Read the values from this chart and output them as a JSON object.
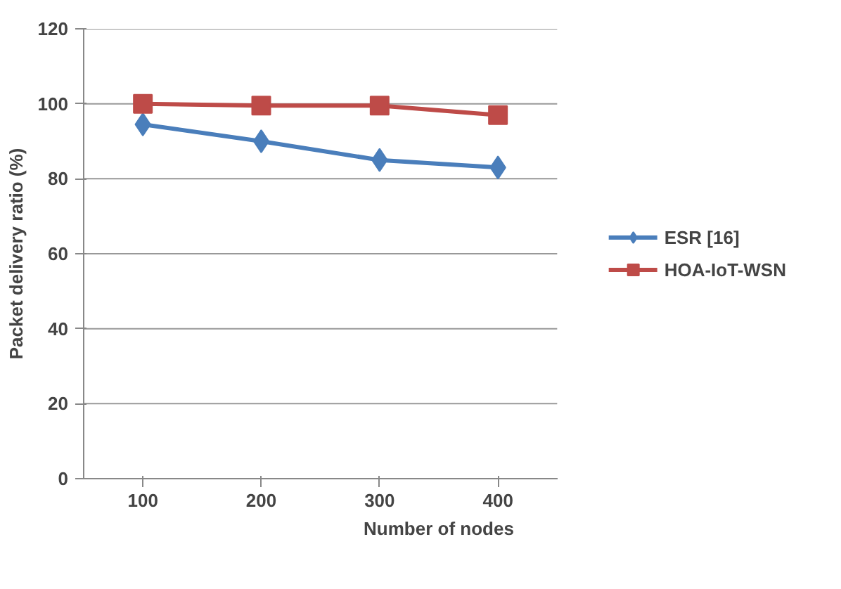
{
  "chart_data": {
    "type": "line",
    "xlabel": "Number of nodes",
    "ylabel": "Packet delivery ratio (%)",
    "categories": [
      "100",
      "200",
      "300",
      "400"
    ],
    "series": [
      {
        "name": "ESR [16]",
        "color": "#4a7ebb",
        "marker": "diamond",
        "values": [
          94.5,
          90,
          85,
          83
        ]
      },
      {
        "name": "HOA-IoT-WSN",
        "color": "#be4b48",
        "marker": "square",
        "values": [
          100,
          99.5,
          99.5,
          97
        ]
      }
    ],
    "ylim": [
      0,
      120
    ],
    "yticks": [
      0,
      20,
      40,
      60,
      80,
      100,
      120
    ],
    "grid": "y",
    "legend": "right"
  }
}
